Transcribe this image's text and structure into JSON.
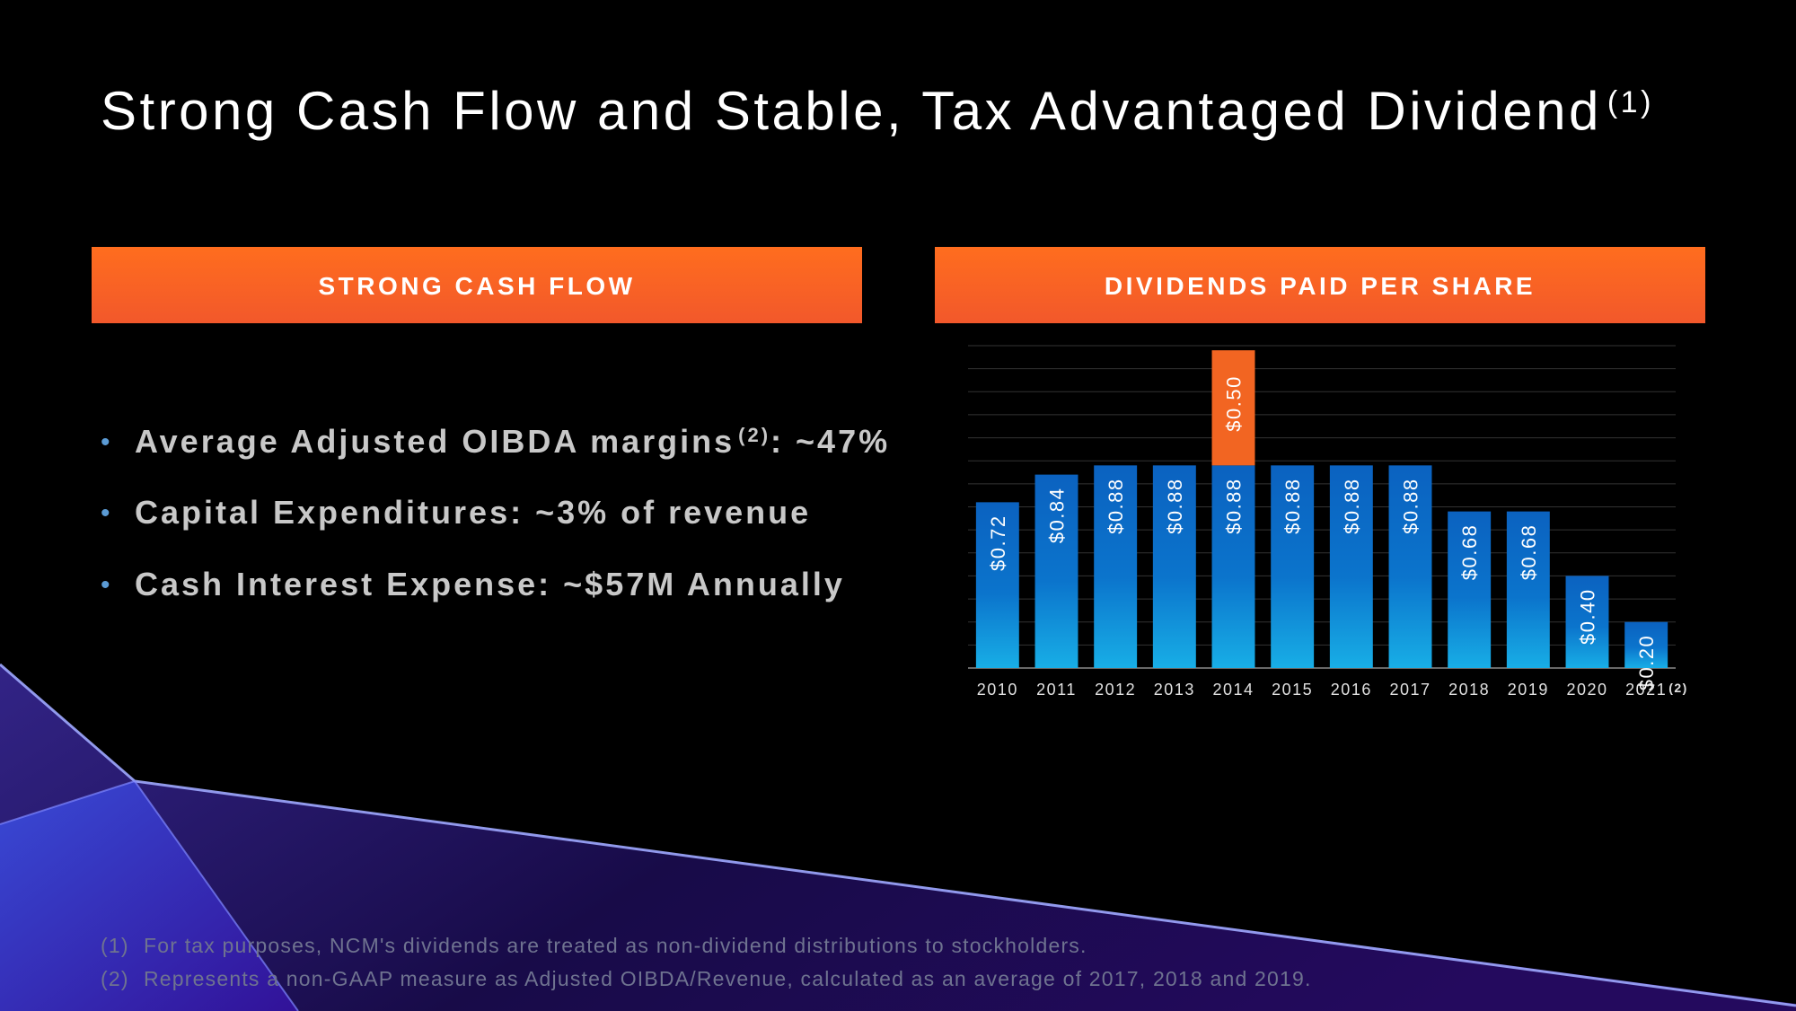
{
  "header": {
    "title": "Strong Cash Flow and Stable, Tax Advantaged Dividend",
    "title_note": "(1)"
  },
  "left_panel": {
    "heading": "STRONG CASH FLOW",
    "bullets": [
      {
        "text": "Average Adjusted OIBDA margins",
        "note": "(2)",
        "rest": ": ~47%"
      },
      {
        "text": "Capital Expenditures: ~3% of revenue",
        "note": null,
        "rest": null
      },
      {
        "text": "Cash Interest Expense: ~$57M Annually",
        "note": null,
        "rest": null
      }
    ]
  },
  "chart_data": {
    "type": "stacked_bar",
    "title": "DIVIDENDS PAID PER SHARE",
    "categories": [
      "2010",
      "2011",
      "2012",
      "2013",
      "2014",
      "2015",
      "2016",
      "2017",
      "2018",
      "2019",
      "2020",
      "2021"
    ],
    "category_notes": [
      null,
      null,
      null,
      null,
      null,
      null,
      null,
      null,
      null,
      null,
      null,
      "(2)"
    ],
    "series": [
      {
        "color": "#0b72c9",
        "values": [
          0.72,
          0.84,
          0.88,
          0.88,
          0.88,
          0.88,
          0.88,
          0.88,
          0.68,
          0.68,
          0.4,
          0.2
        ],
        "value_labels": [
          "$0.72",
          "$0.84",
          "$0.88",
          "$0.88",
          "$0.88",
          "$0.88",
          "$0.88",
          "$0.88",
          "$0.68",
          "$0.68",
          "$0.40",
          "$0.20"
        ]
      },
      {
        "color": "#f26522",
        "values": [
          null,
          null,
          null,
          null,
          0.5,
          null,
          null,
          null,
          null,
          null,
          null,
          null
        ],
        "value_labels": [
          null,
          null,
          null,
          null,
          "$0.50",
          null,
          null,
          null,
          null,
          null,
          null,
          null
        ]
      }
    ],
    "ylim": [
      0,
      1.4
    ],
    "yticks": [
      0,
      0.1,
      0.2,
      0.3,
      0.4,
      0.5,
      0.6,
      0.7,
      0.8,
      0.9,
      1.0,
      1.1,
      1.2,
      1.3,
      1.4
    ],
    "grid": true
  },
  "footnotes": [
    {
      "marker": "(1)",
      "text": "For tax purposes, NCM's dividends are treated as non-dividend distributions to stockholders."
    },
    {
      "marker": "(2)",
      "text": "Represents a non-GAAP measure as Adjusted OIBDA/Revenue, calculated as an average of 2017, 2018 and 2019."
    }
  ]
}
